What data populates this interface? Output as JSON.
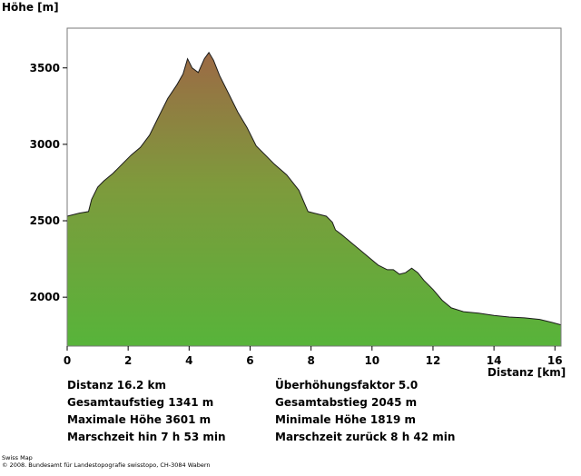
{
  "chart_data": {
    "type": "area",
    "xlabel": "Distanz [km]",
    "ylabel": "Höhe [m]",
    "xlim": [
      0,
      16.2
    ],
    "ylim": [
      1680,
      3760
    ],
    "x_ticks": [
      0,
      2,
      4,
      6,
      8,
      10,
      12,
      14,
      16
    ],
    "y_ticks": [
      2000,
      2500,
      3000,
      3500
    ],
    "grid": false,
    "colors": {
      "top": "#9c6a45",
      "bottom": "#57b43a"
    },
    "series": [
      {
        "x": [
          0,
          0.4,
          0.7,
          0.8,
          1.0,
          1.2,
          1.5,
          1.8,
          2.1,
          2.4,
          2.7,
          3.0,
          3.3,
          3.6,
          3.8,
          3.95,
          4.1,
          4.3,
          4.5,
          4.65,
          4.8,
          5.0,
          5.3,
          5.6,
          5.9,
          6.2,
          6.5,
          6.8,
          7.2,
          7.6,
          7.9,
          8.1,
          8.5,
          8.7,
          8.8,
          9.0,
          9.3,
          9.6,
          9.9,
          10.2,
          10.5,
          10.7,
          10.9,
          11.1,
          11.3,
          11.5,
          11.7,
          12.0,
          12.3,
          12.6,
          13.0,
          13.5,
          14.0,
          14.5,
          15.0,
          15.5,
          15.9,
          16.2
        ],
        "y": [
          2530,
          2550,
          2560,
          2640,
          2720,
          2760,
          2810,
          2870,
          2930,
          2980,
          3060,
          3180,
          3300,
          3390,
          3460,
          3560,
          3500,
          3470,
          3560,
          3601,
          3550,
          3450,
          3330,
          3210,
          3110,
          2990,
          2930,
          2870,
          2800,
          2700,
          2560,
          2550,
          2530,
          2490,
          2440,
          2410,
          2360,
          2310,
          2260,
          2210,
          2180,
          2180,
          2150,
          2160,
          2190,
          2160,
          2110,
          2050,
          1980,
          1930,
          1905,
          1895,
          1880,
          1870,
          1865,
          1855,
          1835,
          1819
        ]
      }
    ]
  },
  "stats": {
    "distanz": "Distanz 16.2 km",
    "faktor": "Überhöhungsfaktor 5.0",
    "aufstieg": "Gesamtaufstieg  1341 m",
    "abstieg": "Gesamtabstieg  2045 m",
    "max_hoehe": "Maximale Höhe  3601 m",
    "min_hoehe": "Minimale Höhe  1819 m",
    "zeit_hin": "Marschzeit hin  7 h 53 min",
    "zeit_zurueck": "Marschzeit zurück  8 h 42 min"
  },
  "credits": {
    "line1": "Swiss Map",
    "line2": "© 2008. Bundesamt für Landestopografie swisstopo, CH-3084 Wabern"
  }
}
